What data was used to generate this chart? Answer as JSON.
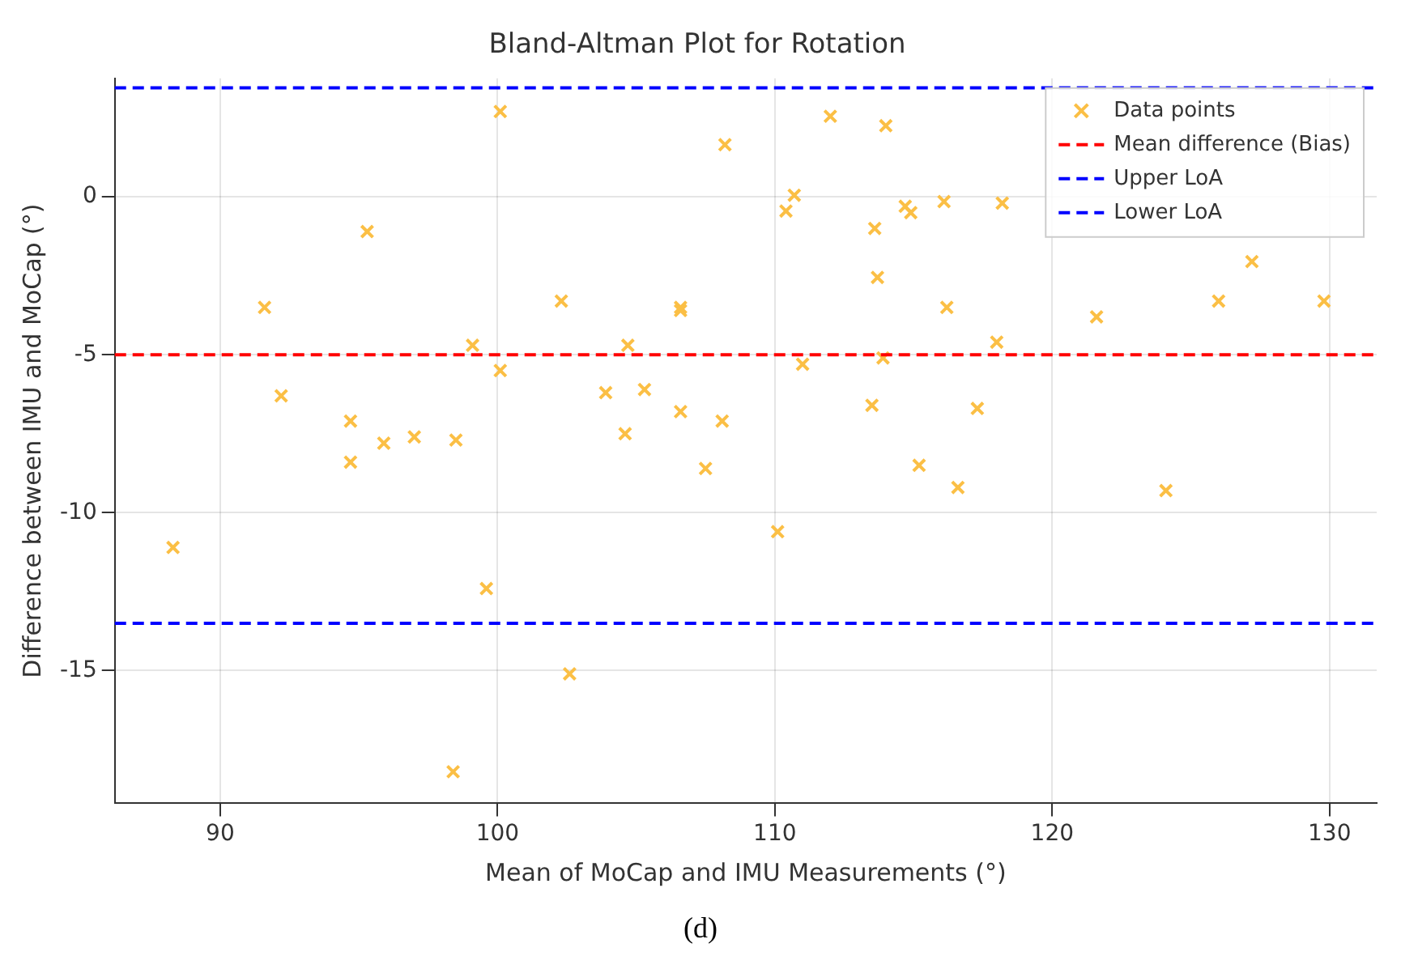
{
  "chart_data": {
    "type": "scatter",
    "title": "Bland-Altman Plot for Rotation",
    "xlabel": "Mean of MoCap and IMU Measurements (°)",
    "ylabel": "Difference between IMU and MoCap (°)",
    "annotations": [
      "(d)"
    ],
    "xlim": [
      86.2,
      131.7
    ],
    "ylim": [
      -19.2,
      3.75
    ],
    "xticks": [
      90,
      100,
      110,
      120,
      130
    ],
    "yticks": [
      -15,
      -10,
      -5,
      0
    ],
    "grid": true,
    "legend": "top right",
    "marker": "cross",
    "series": [
      {
        "name": "Data points",
        "color": "#fbbf45",
        "x": [
          88.3,
          91.6,
          92.2,
          94.7,
          94.7,
          95.3,
          95.9,
          97,
          98.5,
          98.4,
          99.1,
          99.6,
          100.1,
          100.1,
          102.3,
          102.6,
          103.9,
          104.6,
          104.7,
          105.3,
          106.6,
          106.6,
          106.6,
          107.5,
          108.1,
          108.2,
          110.1,
          110.4,
          110.7,
          111.0,
          112.0,
          113.5,
          113.6,
          113.7,
          113.9,
          114.0,
          114.7,
          114.9,
          115.2,
          116.1,
          116.2,
          116.6,
          117.3,
          118.0,
          118.2,
          121.6,
          124.1,
          126.0,
          127.2,
          129.8
        ],
        "values": [
          -11.1,
          -3.5,
          -6.3,
          -7.1,
          -8.4,
          -1.1,
          -7.8,
          -7.6,
          -7.7,
          -18.2,
          -4.7,
          -12.4,
          2.7,
          -5.5,
          -3.3,
          -15.1,
          -6.2,
          -7.5,
          -4.7,
          -6.1,
          -3.5,
          -3.6,
          -6.8,
          -8.6,
          -7.1,
          1.65,
          -10.6,
          -0.45,
          0.05,
          -5.3,
          2.55,
          -6.6,
          -1.0,
          -2.55,
          -5.1,
          2.25,
          -0.3,
          -0.5,
          -8.5,
          -0.15,
          -3.5,
          -9.2,
          -6.7,
          -4.6,
          -0.2,
          -3.8,
          -9.3,
          -3.3,
          -2.05,
          -3.3
        ]
      }
    ],
    "ref_lines": [
      {
        "axis": "y",
        "value": -5.0,
        "label": "Mean difference (Bias)",
        "color": "#ff0000",
        "line_style": "dashed"
      },
      {
        "axis": "y",
        "value": 3.45,
        "label": "Upper LoA",
        "color": "#0000ff",
        "line_style": "dashed"
      },
      {
        "axis": "y",
        "value": -13.5,
        "label": "Lower LoA",
        "color": "#0000ff",
        "line_style": "dashed"
      }
    ]
  }
}
